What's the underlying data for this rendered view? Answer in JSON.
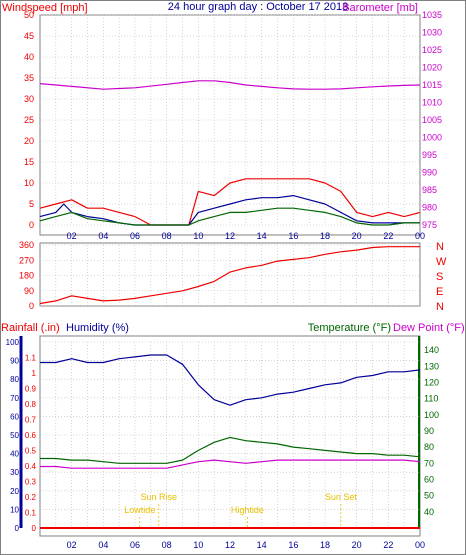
{
  "header": {
    "left_label": "Windspeed [mph]",
    "title": "24 hour graph day : October 17 2013",
    "right_label": "Barometer [mb]"
  },
  "axis_colors": {
    "red": "#ee0000",
    "blue": "#000099",
    "green": "#006600",
    "magenta": "#cc00cc",
    "yellow": "#e8c000"
  },
  "x_hour_labels": [
    "02",
    "04",
    "06",
    "08",
    "10",
    "12",
    "14",
    "16",
    "18",
    "20",
    "22",
    "00"
  ],
  "direction_labels": [
    "N",
    "W",
    "S",
    "E",
    "N"
  ],
  "bottom_header": {
    "rain_label": "Rainfall (.in)",
    "humidity_label": "Humidity (%)",
    "temp_label": "Temperature (°F)",
    "dew_label": "Dew Point (°F)"
  },
  "sun_events": [
    {
      "label": "Lowtide",
      "hour": 6.3
    },
    {
      "label": "Sun Rise",
      "hour": 7.5
    },
    {
      "label": "Hightide",
      "hour": 13.1
    },
    {
      "label": "Sun Set",
      "hour": 19.0
    }
  ],
  "chart_data": [
    {
      "type": "line",
      "title": "24 hour graph day : October 17 2013",
      "xlabel": "",
      "x_range": [
        0,
        24
      ],
      "y_left": {
        "label": "Windspeed [mph]",
        "ticks": [
          0,
          5,
          10,
          15,
          20,
          25,
          30,
          35,
          40,
          45,
          50
        ],
        "range": [
          0,
          50
        ]
      },
      "y_right": {
        "label": "Barometer [mb]",
        "ticks": [
          975,
          980,
          985,
          990,
          995,
          1000,
          1005,
          1010,
          1015,
          1020,
          1025,
          1030,
          1035
        ],
        "range": [
          975,
          1035
        ]
      },
      "series": [
        {
          "axis": "right",
          "color": "#cc00cc",
          "x": [
            0,
            2,
            4,
            6,
            8,
            9,
            10,
            11,
            12,
            13,
            14,
            15,
            16,
            17,
            18,
            19,
            20,
            21,
            22,
            23,
            24
          ],
          "y": [
            1015.4,
            1014.6,
            1013.8,
            1014.2,
            1015.2,
            1015.7,
            1016.2,
            1016.2,
            1015.7,
            1015.0,
            1014.6,
            1014.2,
            1013.9,
            1013.8,
            1013.8,
            1013.9,
            1014.2,
            1014.5,
            1014.7,
            1014.9,
            1015.0
          ]
        },
        {
          "axis": "left",
          "color": "#ee0000",
          "x": [
            0,
            1,
            2,
            3,
            4,
            5,
            6,
            7,
            8,
            9,
            9.4,
            10,
            11,
            12,
            13,
            14,
            15,
            16,
            17,
            18,
            19,
            20,
            21,
            22,
            23,
            24
          ],
          "y": [
            4,
            5,
            6,
            4,
            4,
            3,
            2,
            0,
            0,
            0,
            0,
            8,
            7,
            10,
            11,
            11,
            11,
            11,
            11,
            10,
            8,
            3,
            2,
            3,
            2,
            3
          ]
        },
        {
          "axis": "left",
          "color": "#000099",
          "x": [
            0,
            1,
            1.5,
            2,
            3,
            4,
            5,
            6,
            7,
            8,
            9,
            9.4,
            10,
            11,
            12,
            13,
            14,
            15,
            16,
            17,
            18,
            19,
            20,
            21,
            22,
            23,
            24
          ],
          "y": [
            2,
            3,
            5,
            3,
            2,
            1.5,
            0.5,
            0,
            0,
            0,
            0,
            0,
            3,
            4,
            5,
            6,
            6.5,
            6.5,
            7,
            6,
            5,
            3,
            1,
            0.5,
            0.5,
            0.5,
            0.5
          ]
        },
        {
          "axis": "left",
          "color": "#006600",
          "x": [
            0,
            1,
            2,
            3,
            4,
            5,
            6,
            7,
            8,
            9,
            9.4,
            10,
            11,
            12,
            13,
            14,
            15,
            16,
            17,
            18,
            19,
            20,
            21,
            22,
            23,
            24
          ],
          "y": [
            1,
            2,
            3,
            1.5,
            1,
            0.5,
            0,
            0,
            0,
            0,
            0,
            1,
            2,
            3,
            3,
            3.5,
            4,
            4,
            3.5,
            3,
            2,
            0.5,
            0,
            0,
            0.5,
            0.5
          ]
        }
      ]
    },
    {
      "type": "line",
      "title": "",
      "x_range": [
        0,
        24
      ],
      "y_left": {
        "label": "",
        "ticks": [
          0,
          90,
          180,
          270,
          360
        ],
        "range": [
          0,
          360
        ]
      },
      "series": [
        {
          "axis": "left",
          "color": "#ee0000",
          "x": [
            0,
            1,
            2,
            3,
            4,
            5,
            6,
            7,
            8,
            9,
            10,
            11,
            12,
            13,
            14,
            15,
            16,
            17,
            18,
            19,
            20,
            21,
            22,
            23,
            24
          ],
          "y": [
            15,
            30,
            60,
            45,
            30,
            35,
            45,
            60,
            75,
            90,
            115,
            145,
            200,
            225,
            240,
            265,
            275,
            285,
            305,
            320,
            330,
            345,
            350,
            350,
            350
          ]
        }
      ]
    },
    {
      "type": "line",
      "title": "",
      "x_range": [
        0,
        24
      ],
      "y_left_outer": {
        "label": "Rainfall (.in)",
        "ticks": [
          0,
          0.1,
          0.2,
          0.3,
          0.4,
          0.5,
          0.6,
          0.7,
          0.8,
          0.9,
          1,
          1.1
        ],
        "range": [
          0,
          1.2
        ]
      },
      "y_left_inner": {
        "label": "Humidity (%)",
        "ticks": [
          0,
          10,
          20,
          30,
          40,
          50,
          60,
          70,
          80,
          90,
          100
        ],
        "range": [
          0,
          100
        ]
      },
      "y_right": {
        "label": "Temperature (°F)",
        "ticks": [
          40,
          50,
          60,
          70,
          80,
          90,
          100,
          110,
          120,
          130,
          140
        ],
        "range": [
          30,
          145
        ]
      },
      "series": [
        {
          "name": "Humidity (%)",
          "axis": "inner",
          "color": "#000099",
          "x": [
            0,
            1,
            2,
            3,
            4,
            5,
            6,
            7,
            8,
            9,
            10,
            11,
            12,
            13,
            14,
            15,
            16,
            17,
            18,
            19,
            20,
            21,
            22,
            23,
            24
          ],
          "y": [
            89,
            89,
            91,
            89,
            89,
            91,
            92,
            93,
            93,
            88,
            77,
            69,
            66,
            69,
            70,
            72,
            73,
            75,
            77,
            78,
            81,
            82,
            84,
            84,
            85
          ]
        },
        {
          "name": "Temperature (°F)",
          "axis": "right",
          "color": "#006600",
          "x": [
            0,
            1,
            2,
            3,
            4,
            5,
            6,
            7,
            8,
            9,
            10,
            11,
            12,
            13,
            14,
            15,
            16,
            17,
            18,
            19,
            20,
            21,
            22,
            23,
            24
          ],
          "y": [
            73,
            73,
            72,
            72,
            71,
            70,
            70,
            70,
            70,
            72,
            78,
            83,
            86,
            84,
            83,
            82,
            80,
            79,
            78,
            77,
            76,
            76,
            75,
            75,
            74
          ]
        },
        {
          "name": "Dew Point (°F)",
          "axis": "right",
          "color": "#cc00cc",
          "x": [
            0,
            1,
            2,
            3,
            4,
            5,
            6,
            7,
            8,
            9,
            10,
            11,
            12,
            13,
            14,
            15,
            16,
            17,
            18,
            19,
            20,
            21,
            22,
            23,
            24
          ],
          "y": [
            68,
            68,
            67,
            67,
            67,
            67,
            67,
            67,
            67,
            69,
            71,
            72,
            71,
            70,
            71,
            72,
            72,
            72,
            72,
            72,
            72,
            72,
            72,
            72,
            71
          ]
        },
        {
          "name": "Rainfall (.in)",
          "axis": "outer",
          "color": "#ee0000",
          "x": [
            0,
            24
          ],
          "y": [
            0,
            0
          ]
        }
      ]
    }
  ]
}
